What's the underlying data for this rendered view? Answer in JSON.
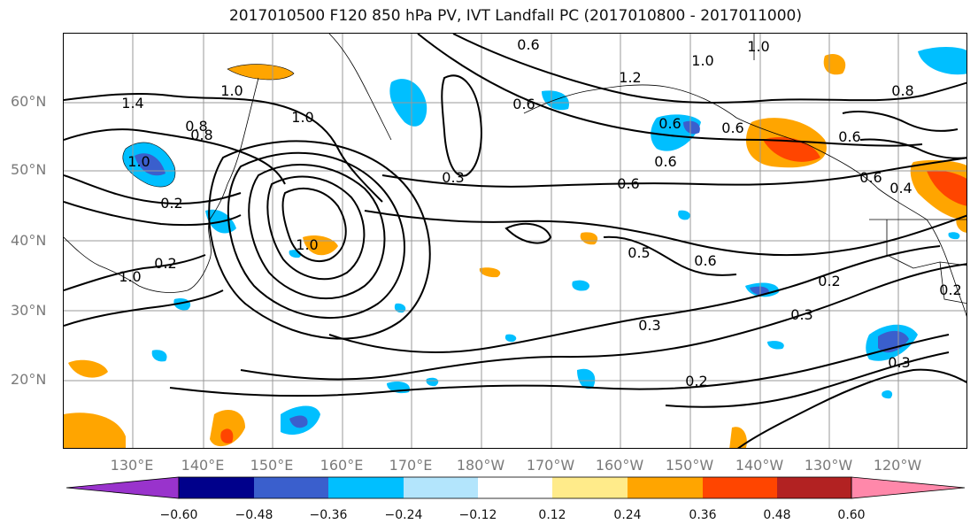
{
  "title": "2017010500 F120 850 hPa PV, IVT Landfall PC (2017010800 - 2017011000)",
  "lat_labels": [
    "60°N",
    "50°N",
    "40°N",
    "30°N",
    "20°N"
  ],
  "lon_labels": [
    "130°E",
    "140°E",
    "150°E",
    "160°E",
    "170°E",
    "180°W",
    "170°W",
    "160°W",
    "150°W",
    "140°W",
    "130°W",
    "120°W"
  ],
  "contour_labels": [
    "1.4",
    "1.0",
    "0.8",
    "1.0",
    "1.0",
    "0.2",
    "0.6",
    "1.0",
    "0.6",
    "1.2",
    "1.0",
    "0.8",
    "0.6",
    "0.8",
    "0.6",
    "0.6",
    "1.0",
    "0.6",
    "0.3",
    "0.6",
    "0.6",
    "0.5",
    "0.6",
    "0.4",
    "0.2",
    "0.3",
    "0.3",
    "0.2",
    "0.3",
    "0.2",
    "0.2",
    "1.0"
  ],
  "colorbar": {
    "ticks": [
      "−0.60",
      "−0.48",
      "−0.36",
      "−0.24",
      "−0.12",
      "0.12",
      "0.24",
      "0.36",
      "0.48",
      "0.60"
    ],
    "colors": [
      "#9933cc",
      "#00008b",
      "#3a5fcd",
      "#00bfff",
      "#b3e5fc",
      "#ffffff",
      "#ffeb8a",
      "#ffa500",
      "#ff4500",
      "#b22222",
      "#ff88aa"
    ]
  },
  "colors": {
    "contour": "#000000",
    "grid": "#999999",
    "axis_label": "#7a7a7a"
  }
}
